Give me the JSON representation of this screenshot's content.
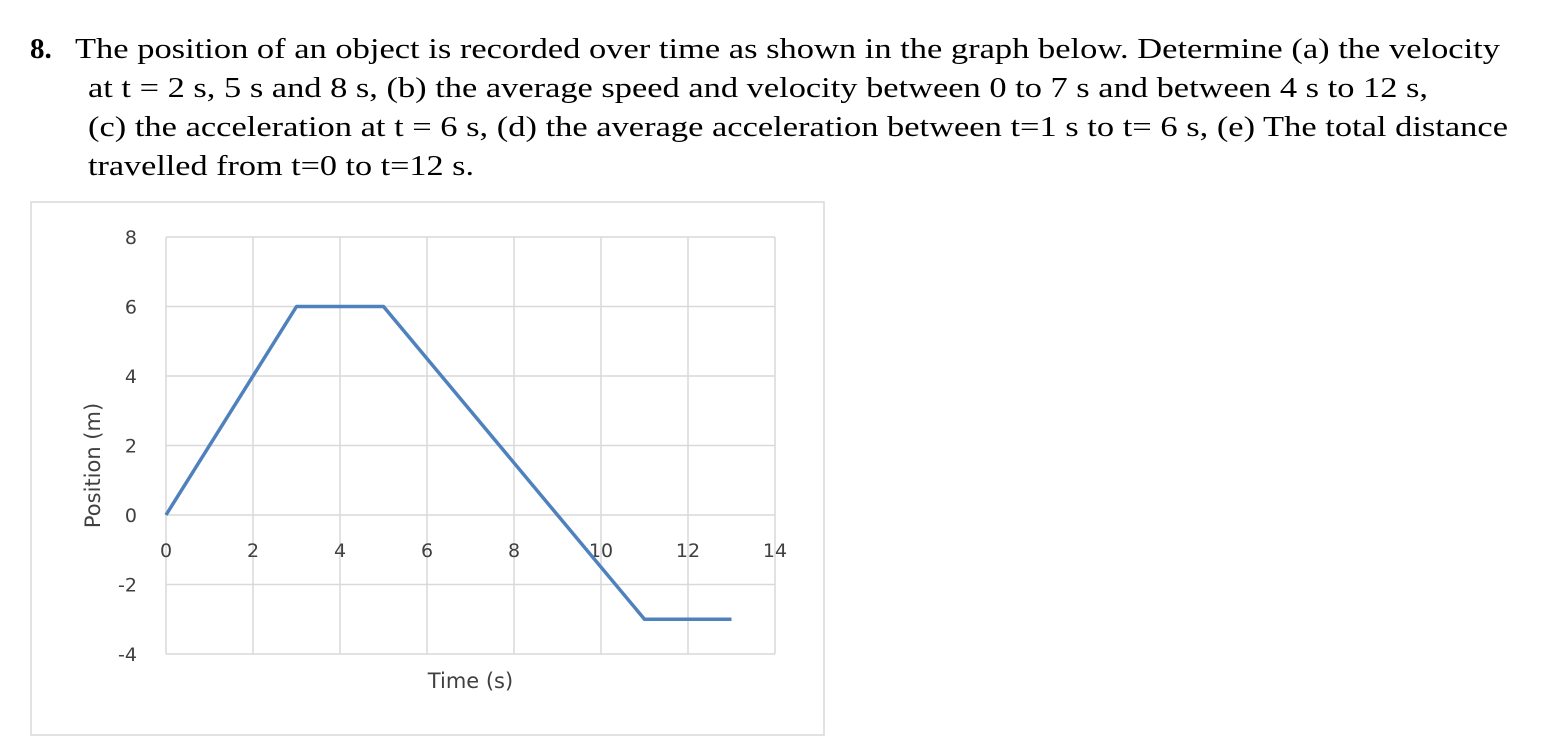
{
  "question": {
    "number": "8.",
    "lines": [
      "The position of an object is recorded over time as shown in the graph below. Determine (a) the velocity",
      "at t = 2 s, 5 s and 8 s, (b) the average speed and velocity between 0 to 7 s and between 4 s to 12 s,",
      "(c) the acceleration at t = 6 s, (d) the average acceleration between t=1 s to t= 6 s, (e) The total distance",
      "travelled from t=0 to t=12 s."
    ]
  },
  "chart_data": {
    "type": "line",
    "x_label": "Time (s)",
    "y_label": "Position (m)",
    "x": [
      0,
      3,
      5,
      11,
      13
    ],
    "series": [
      {
        "name": "Position",
        "color": "#4f81bd",
        "values": [
          0,
          6,
          6,
          -3,
          -3
        ]
      }
    ],
    "xlim": [
      0,
      14
    ],
    "xticks": [
      0,
      2,
      4,
      6,
      8,
      10,
      12,
      14
    ],
    "ylim": [
      -4,
      8
    ],
    "yticks": [
      -4,
      -2,
      0,
      2,
      4,
      6,
      8
    ],
    "grid": true
  }
}
